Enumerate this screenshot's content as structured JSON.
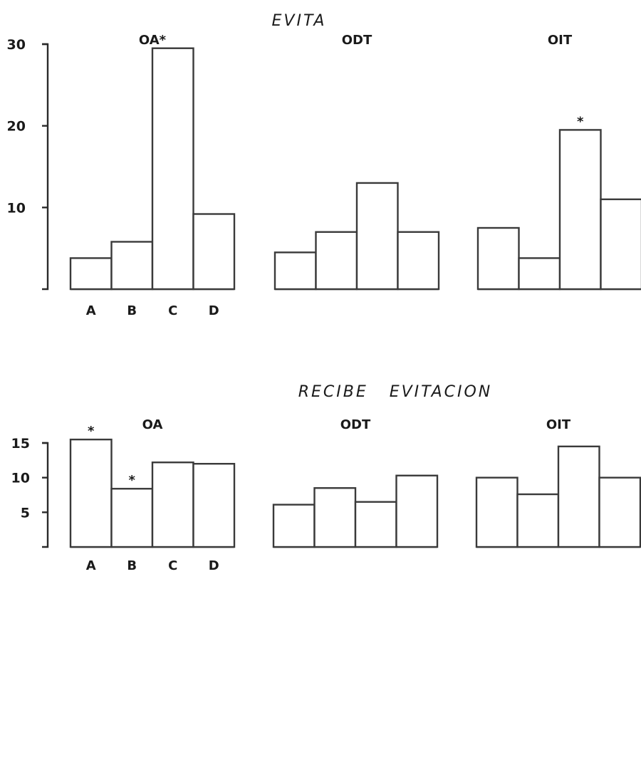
{
  "chart_data": [
    {
      "type": "bar",
      "title": "EVITA",
      "categories": [
        "A",
        "B",
        "C",
        "D"
      ],
      "ylim": [
        0,
        30
      ],
      "yticks": [
        10,
        20,
        30
      ],
      "panels": [
        {
          "name": "OA",
          "title": "OA",
          "title_star": "*",
          "values": [
            3.8,
            5.8,
            29.5,
            9.2
          ],
          "starred": []
        },
        {
          "name": "ODT",
          "title": "ODT",
          "title_star": "",
          "values": [
            4.5,
            7.0,
            13.0,
            7.0
          ],
          "starred": []
        },
        {
          "name": "OIT",
          "title": "OIT",
          "title_star": "",
          "values": [
            7.5,
            3.8,
            19.5,
            11.0
          ],
          "starred": [
            2
          ]
        }
      ]
    },
    {
      "type": "bar",
      "title": "RECIBE   EVITACION",
      "categories": [
        "A",
        "B",
        "C",
        "D"
      ],
      "ylim": [
        0,
        15
      ],
      "yticks": [
        5,
        10,
        15
      ],
      "panels": [
        {
          "name": "OA",
          "title": "OA",
          "title_star": "",
          "values": [
            15.5,
            8.4,
            12.2,
            12.0
          ],
          "starred": [
            0,
            1
          ]
        },
        {
          "name": "ODT",
          "title": "ODT",
          "title_star": "",
          "values": [
            6.1,
            8.5,
            6.5,
            10.3
          ],
          "starred": []
        },
        {
          "name": "OIT",
          "title": "OIT",
          "title_star": "",
          "values": [
            10.0,
            7.6,
            14.5,
            10.0
          ],
          "starred": []
        }
      ]
    }
  ],
  "star_symbol": "*"
}
